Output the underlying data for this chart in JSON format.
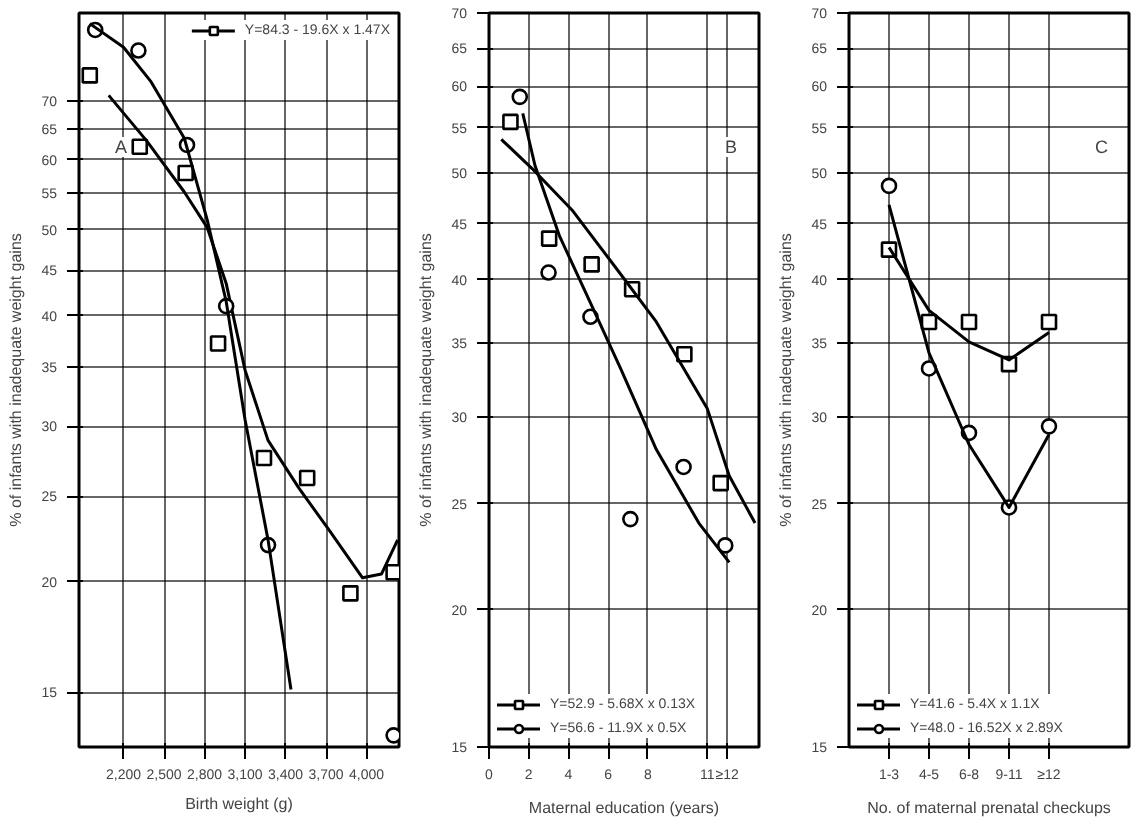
{
  "chart_data": [
    {
      "type": "scatter",
      "xlabel": "Birth weight (g)",
      "ylabel": "% of infants with inadequate weight gains",
      "annotations": [
        "A"
      ],
      "log": "y",
      "grid": true,
      "legend": "top right",
      "xlim": [
        1870,
        4240
      ],
      "xticks": [
        {
          "value": 2200,
          "label": "2,200"
        },
        {
          "value": 2500,
          "label": "2,500"
        },
        {
          "value": 2800,
          "label": "2,800"
        },
        {
          "value": 3100,
          "label": "3,100"
        },
        {
          "value": 3400,
          "label": "3,400"
        },
        {
          "value": 3700,
          "label": "3,700"
        },
        {
          "value": 4000,
          "label": "4,000"
        }
      ],
      "ylim": [
        13,
        88
      ],
      "yticks": [
        15,
        20,
        25,
        30,
        35,
        40,
        45,
        50,
        55,
        60,
        65,
        70
      ],
      "series": [
        {
          "type": "scatter",
          "marker": "square",
          "color": "#000000",
          "x": [
            1950,
            2320,
            2660,
            2900,
            3240,
            3560,
            3880,
            4200
          ],
          "values": [
            74.8,
            62.1,
            58.0,
            37.2,
            27.6,
            26.2,
            19.4,
            20.5
          ]
        },
        {
          "type": "line",
          "name": "Y=84.3 - 19.6X x 1.47X",
          "color": "#000000",
          "x": [
            2090,
            2370,
            2650,
            2820,
            2960,
            3100,
            3270,
            3500,
            3720,
            3970,
            4110,
            4230
          ],
          "values": [
            71,
            63.1,
            55.2,
            50.3,
            43.5,
            34.7,
            28.9,
            25.5,
            22.9,
            20.2,
            20.4,
            22.3
          ]
        },
        {
          "type": "scatter",
          "marker": "circle",
          "color": "#000000",
          "x": [
            1990,
            2310,
            2670,
            2960,
            3270,
            4200
          ],
          "values": [
            84.2,
            79.8,
            62.4,
            41.0,
            22.0,
            13.4
          ]
        },
        {
          "type": "line",
          "color": "#000000",
          "x": [
            1950,
            2200,
            2400,
            2650,
            2820,
            2960,
            3100,
            3270,
            3440
          ],
          "values": [
            85.6,
            80.5,
            73.7,
            63.5,
            51.3,
            41.5,
            30.5,
            22.3,
            15.1
          ]
        }
      ]
    },
    {
      "type": "scatter",
      "xlabel": "Maternal education (years)",
      "ylabel": "% of infants with inadequate weight gains",
      "annotations": [
        "B"
      ],
      "log": "y",
      "grid": true,
      "legend": "bottom left",
      "xlim": [
        0,
        13.6
      ],
      "xticks": [
        0,
        2,
        4,
        6,
        8,
        11,
        {
          "value": 12,
          "label": "≥12"
        }
      ],
      "ylim": [
        15,
        70
      ],
      "yticks": [
        15,
        20,
        25,
        30,
        35,
        40,
        45,
        50,
        55,
        60,
        65,
        70
      ],
      "series": [
        {
          "type": "scatter",
          "marker": "square",
          "color": "#000000",
          "x": [
            1.08,
            3.03,
            5.17,
            7.21,
            9.84,
            11.67
          ],
          "values": [
            55.7,
            43.6,
            41.3,
            39.2,
            34.2,
            26.1
          ]
        },
        {
          "type": "line",
          "name": "Y=52.9 - 5.68X x 0.13X",
          "color": "#000000",
          "x": [
            0.62,
            2.17,
            4.18,
            6.35,
            8.43,
            11.0,
            12.1,
            13.4
          ],
          "values": [
            53.7,
            50.5,
            46.3,
            41.1,
            36.6,
            30.5,
            26.5,
            24.0
          ]
        },
        {
          "type": "scatter",
          "marker": "circle",
          "color": "#000000",
          "x": [
            1.55,
            3.0,
            5.11,
            7.12,
            9.8,
            11.9
          ],
          "values": [
            58.7,
            40.6,
            37.0,
            24.2,
            27.0,
            22.9
          ]
        },
        {
          "type": "line",
          "name": "Y=56.6 - 11.9X x 0.5X",
          "color": "#000000",
          "x": [
            1.7,
            2.32,
            3.56,
            5.11,
            6.66,
            8.43,
            10.57,
            12.1
          ],
          "values": [
            56.7,
            50.8,
            43.8,
            38.1,
            33.1,
            28.0,
            24.0,
            22.1
          ]
        }
      ]
    },
    {
      "type": "scatter",
      "xlabel": "No. of maternal prenatal checkups",
      "ylabel": "% of infants with inadequate weight gains",
      "annotations": [
        "C"
      ],
      "log": "y",
      "grid": true,
      "legend": "bottom left",
      "categories": [
        "1-3",
        "4-5",
        "6-8",
        "9-11",
        "≥12"
      ],
      "ylim": [
        15,
        70
      ],
      "yticks": [
        15,
        20,
        25,
        30,
        35,
        40,
        45,
        50,
        55,
        60,
        65,
        70
      ],
      "series": [
        {
          "type": "scatter",
          "marker": "square",
          "color": "#000000",
          "values": [
            42.6,
            36.6,
            36.6,
            33.5,
            36.6
          ]
        },
        {
          "type": "line",
          "name": "Y=41.6 - 5.4X x 1.1X",
          "color": "#000000",
          "values": [
            42.8,
            37.5,
            35.1,
            33.8,
            35.8
          ]
        },
        {
          "type": "scatter",
          "marker": "circle",
          "color": "#000000",
          "values": [
            48.7,
            33.2,
            29.0,
            24.8,
            29.4
          ]
        },
        {
          "type": "line",
          "name": "Y=48.0 - 16.52X x 2.89X",
          "color": "#000000",
          "values": [
            46.8,
            34.3,
            28.3,
            24.8,
            28.9
          ]
        }
      ]
    }
  ]
}
